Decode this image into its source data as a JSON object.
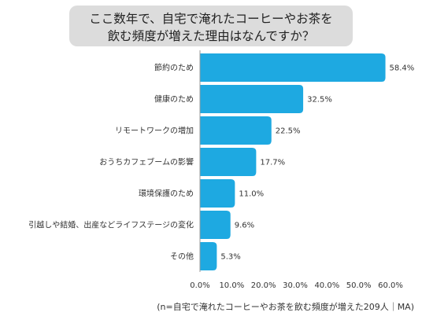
{
  "title_lines": [
    "ここ数年で、自宅で淹れたコーヒーやお茶を",
    "飲む頻度が増えた理由はなんですか？"
  ],
  "caption": "(n=自宅で淹れたコーヒーやお茶を飲む頻度が増えた209人｜MA)",
  "colors": {
    "bar": "#1ea9e1",
    "axis": "#9a9a9a",
    "title_bg": "#dcdcdc"
  },
  "chart_data": {
    "type": "bar",
    "orientation": "horizontal",
    "categories": [
      "節約のため",
      "健康のため",
      "リモートワークの増加",
      "おうちカフェブームの影響",
      "環境保護のため",
      "引越しや結婚、出産などライフステージの変化",
      "その他"
    ],
    "values": [
      58.4,
      32.5,
      22.5,
      17.7,
      11.0,
      9.6,
      5.3
    ],
    "value_labels": [
      "58.4%",
      "32.5%",
      "22.5%",
      "17.7%",
      "11.0%",
      "9.6%",
      "5.3%"
    ],
    "x_ticks": [
      "0.0%",
      "10.0%",
      "20.0%",
      "30.0%",
      "40.0%",
      "50.0%",
      "60.0%"
    ],
    "xlim": [
      0,
      60
    ],
    "grid": false,
    "legend": "none"
  }
}
